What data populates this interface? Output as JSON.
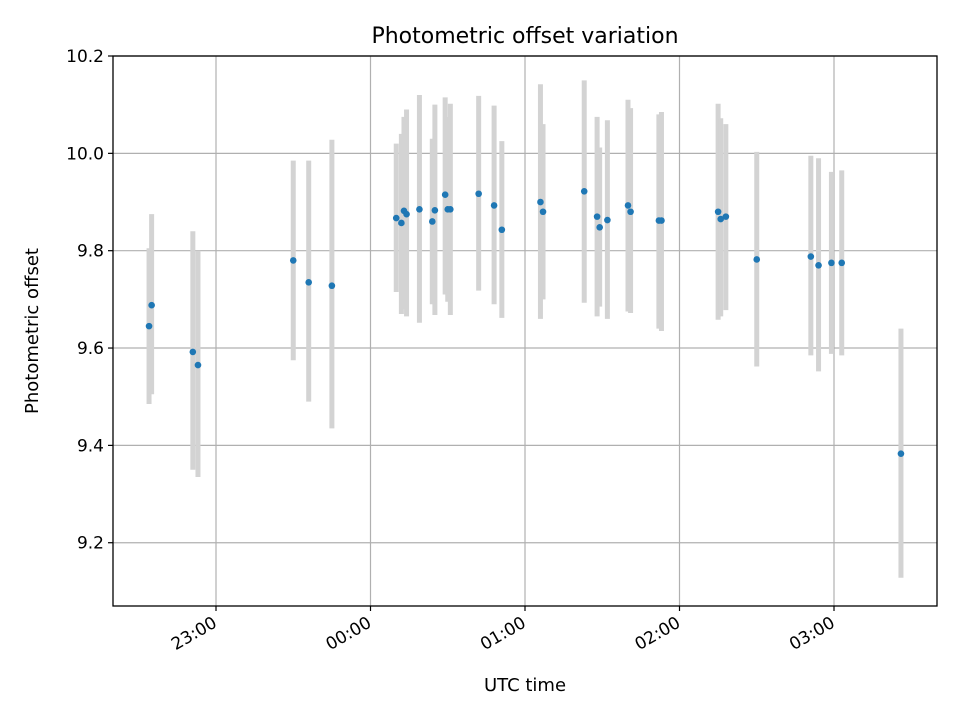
{
  "chart_data": {
    "type": "scatter",
    "title": "Photometric offset variation",
    "xlabel": "UTC time",
    "ylabel": "Photometric offset",
    "xlim": [
      "22:20",
      "03:40"
    ],
    "ylim": [
      9.07,
      10.2
    ],
    "x_ticks": [
      "23:00",
      "00:00",
      "01:00",
      "02:00",
      "03:00"
    ],
    "y_ticks": [
      "9.2",
      "9.4",
      "9.6",
      "9.8",
      "10.0",
      "10.2"
    ],
    "grid": true,
    "colors": {
      "points": "#1f77b4",
      "error_bars": "#d3d3d3",
      "grid": "#b0b0b0"
    },
    "series": [
      {
        "marker": "dot",
        "points": [
          {
            "x": "22:34",
            "y": 9.645,
            "err_low": 9.485,
            "err_high": 9.805
          },
          {
            "x": "22:35",
            "y": 9.688,
            "err_low": 9.505,
            "err_high": 9.875
          },
          {
            "x": "22:51",
            "y": 9.592,
            "err_low": 9.35,
            "err_high": 9.84
          },
          {
            "x": "22:53",
            "y": 9.565,
            "err_low": 9.335,
            "err_high": 9.8
          },
          {
            "x": "23:30",
            "y": 9.78,
            "err_low": 9.575,
            "err_high": 9.985
          },
          {
            "x": "23:36",
            "y": 9.735,
            "err_low": 9.49,
            "err_high": 9.985
          },
          {
            "x": "23:45",
            "y": 9.728,
            "err_low": 9.435,
            "err_high": 10.028
          },
          {
            "x": "00:10",
            "y": 9.867,
            "err_low": 9.715,
            "err_high": 10.02
          },
          {
            "x": "00:12",
            "y": 9.857,
            "err_low": 9.67,
            "err_high": 10.04
          },
          {
            "x": "00:13",
            "y": 9.882,
            "err_low": 9.68,
            "err_high": 10.075
          },
          {
            "x": "00:14",
            "y": 9.875,
            "err_low": 9.665,
            "err_high": 10.09
          },
          {
            "x": "00:19",
            "y": 9.885,
            "err_low": 9.652,
            "err_high": 10.12
          },
          {
            "x": "00:24",
            "y": 9.86,
            "err_low": 9.69,
            "err_high": 10.03
          },
          {
            "x": "00:25",
            "y": 9.883,
            "err_low": 9.668,
            "err_high": 10.1
          },
          {
            "x": "00:29",
            "y": 9.915,
            "err_low": 9.71,
            "err_high": 10.115
          },
          {
            "x": "00:30",
            "y": 9.885,
            "err_low": 9.695,
            "err_high": 10.075
          },
          {
            "x": "00:31",
            "y": 9.885,
            "err_low": 9.668,
            "err_high": 10.102
          },
          {
            "x": "00:42",
            "y": 9.917,
            "err_low": 9.718,
            "err_high": 10.118
          },
          {
            "x": "00:48",
            "y": 9.893,
            "err_low": 9.69,
            "err_high": 10.098
          },
          {
            "x": "00:51",
            "y": 9.843,
            "err_low": 9.662,
            "err_high": 10.025
          },
          {
            "x": "01:06",
            "y": 9.9,
            "err_low": 9.66,
            "err_high": 10.142
          },
          {
            "x": "01:07",
            "y": 9.88,
            "err_low": 9.7,
            "err_high": 10.06
          },
          {
            "x": "01:23",
            "y": 9.922,
            "err_low": 9.693,
            "err_high": 10.15
          },
          {
            "x": "01:28",
            "y": 9.87,
            "err_low": 9.665,
            "err_high": 10.075
          },
          {
            "x": "01:29",
            "y": 9.848,
            "err_low": 9.685,
            "err_high": 10.012
          },
          {
            "x": "01:32",
            "y": 9.863,
            "err_low": 9.66,
            "err_high": 10.068
          },
          {
            "x": "01:40",
            "y": 9.893,
            "err_low": 9.675,
            "err_high": 10.11
          },
          {
            "x": "01:41",
            "y": 9.88,
            "err_low": 9.672,
            "err_high": 10.093
          },
          {
            "x": "01:52",
            "y": 9.862,
            "err_low": 9.64,
            "err_high": 10.08
          },
          {
            "x": "01:53",
            "y": 9.862,
            "err_low": 9.635,
            "err_high": 10.085
          },
          {
            "x": "02:15",
            "y": 9.88,
            "err_low": 9.658,
            "err_high": 10.102
          },
          {
            "x": "02:16",
            "y": 9.865,
            "err_low": 9.665,
            "err_high": 10.072
          },
          {
            "x": "02:18",
            "y": 9.87,
            "err_low": 9.678,
            "err_high": 10.06
          },
          {
            "x": "02:30",
            "y": 9.782,
            "err_low": 9.562,
            "err_high": 10.003
          },
          {
            "x": "02:51",
            "y": 9.788,
            "err_low": 9.585,
            "err_high": 9.995
          },
          {
            "x": "02:54",
            "y": 9.77,
            "err_low": 9.552,
            "err_high": 9.99
          },
          {
            "x": "02:59",
            "y": 9.775,
            "err_low": 9.588,
            "err_high": 9.962
          },
          {
            "x": "03:03",
            "y": 9.775,
            "err_low": 9.585,
            "err_high": 9.965
          },
          {
            "x": "03:26",
            "y": 9.383,
            "err_low": 9.128,
            "err_high": 9.64
          }
        ]
      }
    ]
  }
}
